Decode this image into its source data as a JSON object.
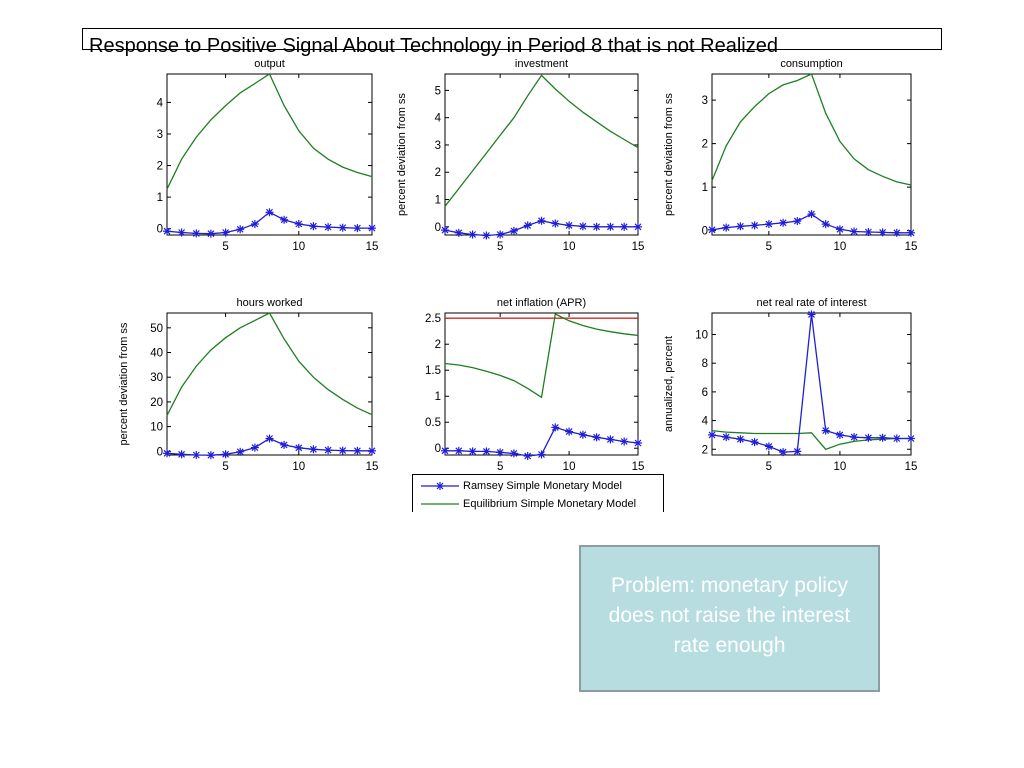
{
  "title": "Response to Positive Signal About Technology in Period 8 that is not Realized",
  "callout": "Problem: monetary policy does not raise the interest rate enough",
  "colors": {
    "ramsey": "#1f1fd6",
    "equilibrium": "#1f7f1f",
    "reference": "#d62828",
    "callout_bg": "#b7dde1"
  },
  "legend": [
    {
      "label": "Ramsey Simple Monetary Model",
      "color": "#1f1fd6",
      "marker": "star"
    },
    {
      "label": "Equilibrium Simple Monetary Model",
      "color": "#1f7f1f",
      "marker": "none"
    }
  ],
  "chart_data": [
    {
      "type": "line",
      "title": "output",
      "ylabel": "",
      "xlim": [
        1,
        15
      ],
      "ylim": [
        -0.2,
        4.9
      ],
      "xticks": [
        5,
        10,
        15
      ],
      "yticks": [
        0,
        1,
        2,
        3,
        4
      ],
      "x": [
        1,
        2,
        3,
        4,
        5,
        6,
        7,
        8,
        9,
        10,
        11,
        12,
        13,
        14,
        15
      ],
      "series": [
        {
          "name": "Ramsey Simple Monetary Model",
          "values": [
            -0.08,
            -0.12,
            -0.15,
            -0.16,
            -0.12,
            -0.02,
            0.15,
            0.52,
            0.28,
            0.15,
            0.08,
            0.05,
            0.03,
            0.02,
            0.02
          ]
        },
        {
          "name": "Equilibrium Simple Monetary Model",
          "values": [
            1.25,
            2.2,
            2.9,
            3.45,
            3.9,
            4.3,
            4.6,
            4.9,
            3.9,
            3.1,
            2.55,
            2.2,
            1.95,
            1.78,
            1.65
          ]
        }
      ]
    },
    {
      "type": "line",
      "title": "investment",
      "ylabel": "percent deviation from ss",
      "xlim": [
        1,
        15
      ],
      "ylim": [
        -0.3,
        5.6
      ],
      "xticks": [
        5,
        10,
        15
      ],
      "yticks": [
        0,
        1,
        2,
        3,
        4,
        5
      ],
      "x": [
        1,
        2,
        3,
        4,
        5,
        6,
        7,
        8,
        9,
        10,
        11,
        12,
        13,
        14,
        15
      ],
      "series": [
        {
          "name": "Ramsey Simple Monetary Model",
          "values": [
            -0.12,
            -0.22,
            -0.28,
            -0.32,
            -0.28,
            -0.15,
            0.05,
            0.22,
            0.12,
            0.05,
            0.02,
            0.0,
            0.0,
            0.0,
            0.0
          ]
        },
        {
          "name": "Equilibrium Simple Monetary Model",
          "values": [
            0.75,
            1.4,
            2.05,
            2.7,
            3.35,
            4.0,
            4.8,
            5.55,
            5.05,
            4.6,
            4.2,
            3.85,
            3.5,
            3.2,
            2.9
          ]
        }
      ]
    },
    {
      "type": "line",
      "title": "consumption",
      "ylabel": "percent deviation from ss",
      "xlim": [
        1,
        15
      ],
      "ylim": [
        -0.1,
        3.6
      ],
      "xticks": [
        5,
        10,
        15
      ],
      "yticks": [
        0,
        1,
        2,
        3
      ],
      "x": [
        1,
        2,
        3,
        4,
        5,
        6,
        7,
        8,
        9,
        10,
        11,
        12,
        13,
        14,
        15
      ],
      "series": [
        {
          "name": "Ramsey Simple Monetary Model",
          "values": [
            0.02,
            0.07,
            0.1,
            0.12,
            0.15,
            0.18,
            0.22,
            0.38,
            0.15,
            0.03,
            -0.02,
            -0.03,
            -0.04,
            -0.05,
            -0.05
          ]
        },
        {
          "name": "Equilibrium Simple Monetary Model",
          "values": [
            1.15,
            1.95,
            2.5,
            2.85,
            3.15,
            3.35,
            3.45,
            3.6,
            2.7,
            2.05,
            1.65,
            1.4,
            1.25,
            1.12,
            1.05
          ]
        }
      ]
    },
    {
      "type": "line",
      "title": "hours worked",
      "ylabel": "percent deviation from ss",
      "xlim": [
        1,
        15
      ],
      "ylim": [
        -1.5,
        56
      ],
      "xticks": [
        5,
        10,
        15
      ],
      "yticks": [
        0,
        10,
        20,
        30,
        40,
        50
      ],
      "x": [
        1,
        2,
        3,
        4,
        5,
        6,
        7,
        8,
        9,
        10,
        11,
        12,
        13,
        14,
        15
      ],
      "series": [
        {
          "name": "Ramsey Simple Monetary Model",
          "values": [
            -0.8,
            -1.2,
            -1.5,
            -1.6,
            -1.2,
            -0.2,
            1.5,
            5.2,
            2.6,
            1.4,
            0.8,
            0.5,
            0.3,
            0.2,
            0.2
          ]
        },
        {
          "name": "Equilibrium Simple Monetary Model",
          "values": [
            14.5,
            26,
            34.5,
            41,
            46,
            50,
            53,
            56,
            45.5,
            36.5,
            30,
            25,
            21,
            17.5,
            14.8
          ]
        }
      ]
    },
    {
      "type": "line",
      "title": "net inflation (APR)",
      "ylabel": "",
      "xlim": [
        1,
        15
      ],
      "ylim": [
        -0.13,
        2.6
      ],
      "xticks": [
        5,
        10,
        15
      ],
      "yticks": [
        0,
        0.5,
        1,
        1.5,
        2,
        2.5
      ],
      "x": [
        1,
        2,
        3,
        4,
        5,
        6,
        7,
        8,
        9,
        10,
        11,
        12,
        13,
        14,
        15
      ],
      "series": [
        {
          "name": "Ramsey Simple Monetary Model",
          "values": [
            -0.05,
            -0.05,
            -0.06,
            -0.06,
            -0.08,
            -0.1,
            -0.15,
            -0.12,
            0.4,
            0.32,
            0.26,
            0.21,
            0.17,
            0.13,
            0.1
          ]
        },
        {
          "name": "Equilibrium Simple Monetary Model",
          "values": [
            1.63,
            1.6,
            1.55,
            1.48,
            1.4,
            1.3,
            1.15,
            0.98,
            2.58,
            2.45,
            2.36,
            2.29,
            2.24,
            2.2,
            2.17
          ]
        },
        {
          "name": "reference",
          "values": [
            2.5,
            2.5,
            2.5,
            2.5,
            2.5,
            2.5,
            2.5,
            2.5,
            2.5,
            2.5,
            2.5,
            2.5,
            2.5,
            2.5,
            2.5
          ]
        }
      ]
    },
    {
      "type": "line",
      "title": "net real rate of interest",
      "ylabel": "annualized, percent",
      "xlim": [
        1,
        15
      ],
      "ylim": [
        1.6,
        11.5
      ],
      "xticks": [
        5,
        10,
        15
      ],
      "yticks": [
        2,
        4,
        6,
        8,
        10
      ],
      "x": [
        1,
        2,
        3,
        4,
        5,
        6,
        7,
        8,
        9,
        10,
        11,
        12,
        13,
        14,
        15
      ],
      "series": [
        {
          "name": "Ramsey Simple Monetary Model",
          "values": [
            3.0,
            2.85,
            2.7,
            2.5,
            2.2,
            1.8,
            1.85,
            11.4,
            3.3,
            3.0,
            2.85,
            2.8,
            2.8,
            2.75,
            2.75
          ]
        },
        {
          "name": "Equilibrium Simple Monetary Model",
          "values": [
            3.3,
            3.2,
            3.15,
            3.1,
            3.1,
            3.1,
            3.1,
            3.15,
            2.0,
            2.35,
            2.55,
            2.65,
            2.7,
            2.75,
            2.75
          ]
        }
      ]
    }
  ]
}
